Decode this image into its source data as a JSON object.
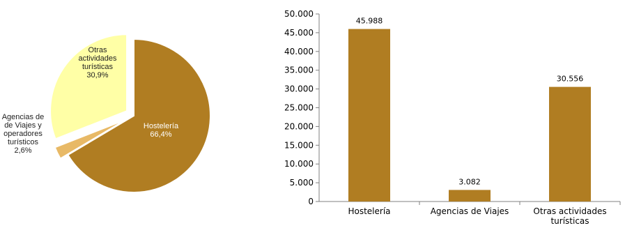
{
  "chart_data": [
    {
      "type": "pie",
      "slices": [
        {
          "label_lines": [
            "Hostelería",
            "66,4%"
          ],
          "value": 66.4,
          "color": "#b07d22",
          "exploded": false
        },
        {
          "label_lines": [
            "Agencias de",
            "de Viajes y",
            "operadores",
            "turísticos",
            "2,6%"
          ],
          "value": 2.6,
          "color": "#e8b966",
          "exploded": true
        },
        {
          "label_lines": [
            "Otras",
            "actividades",
            "turísticas",
            "30,9%"
          ],
          "value": 30.9,
          "color": "#ffffa6",
          "exploded": true
        }
      ]
    },
    {
      "type": "bar",
      "categories": [
        {
          "lines": [
            "Hostelería"
          ]
        },
        {
          "lines": [
            "Agencias de Viajes"
          ]
        },
        {
          "lines": [
            "Otras actividades",
            "turísticas"
          ]
        }
      ],
      "values": [
        45988,
        3082,
        30556
      ],
      "value_labels": [
        "45.988",
        "3.082",
        "30.556"
      ],
      "ylim": [
        0,
        50000
      ],
      "yticks": [
        0,
        5000,
        10000,
        15000,
        20000,
        25000,
        30000,
        35000,
        40000,
        45000,
        50000
      ],
      "ytick_labels": [
        "0",
        "5.000",
        "10.000",
        "15.000",
        "20.000",
        "25.000",
        "30.000",
        "35.000",
        "40.000",
        "45.000",
        "50.000"
      ],
      "bar_color": "#b07d22",
      "grid": false
    }
  ]
}
